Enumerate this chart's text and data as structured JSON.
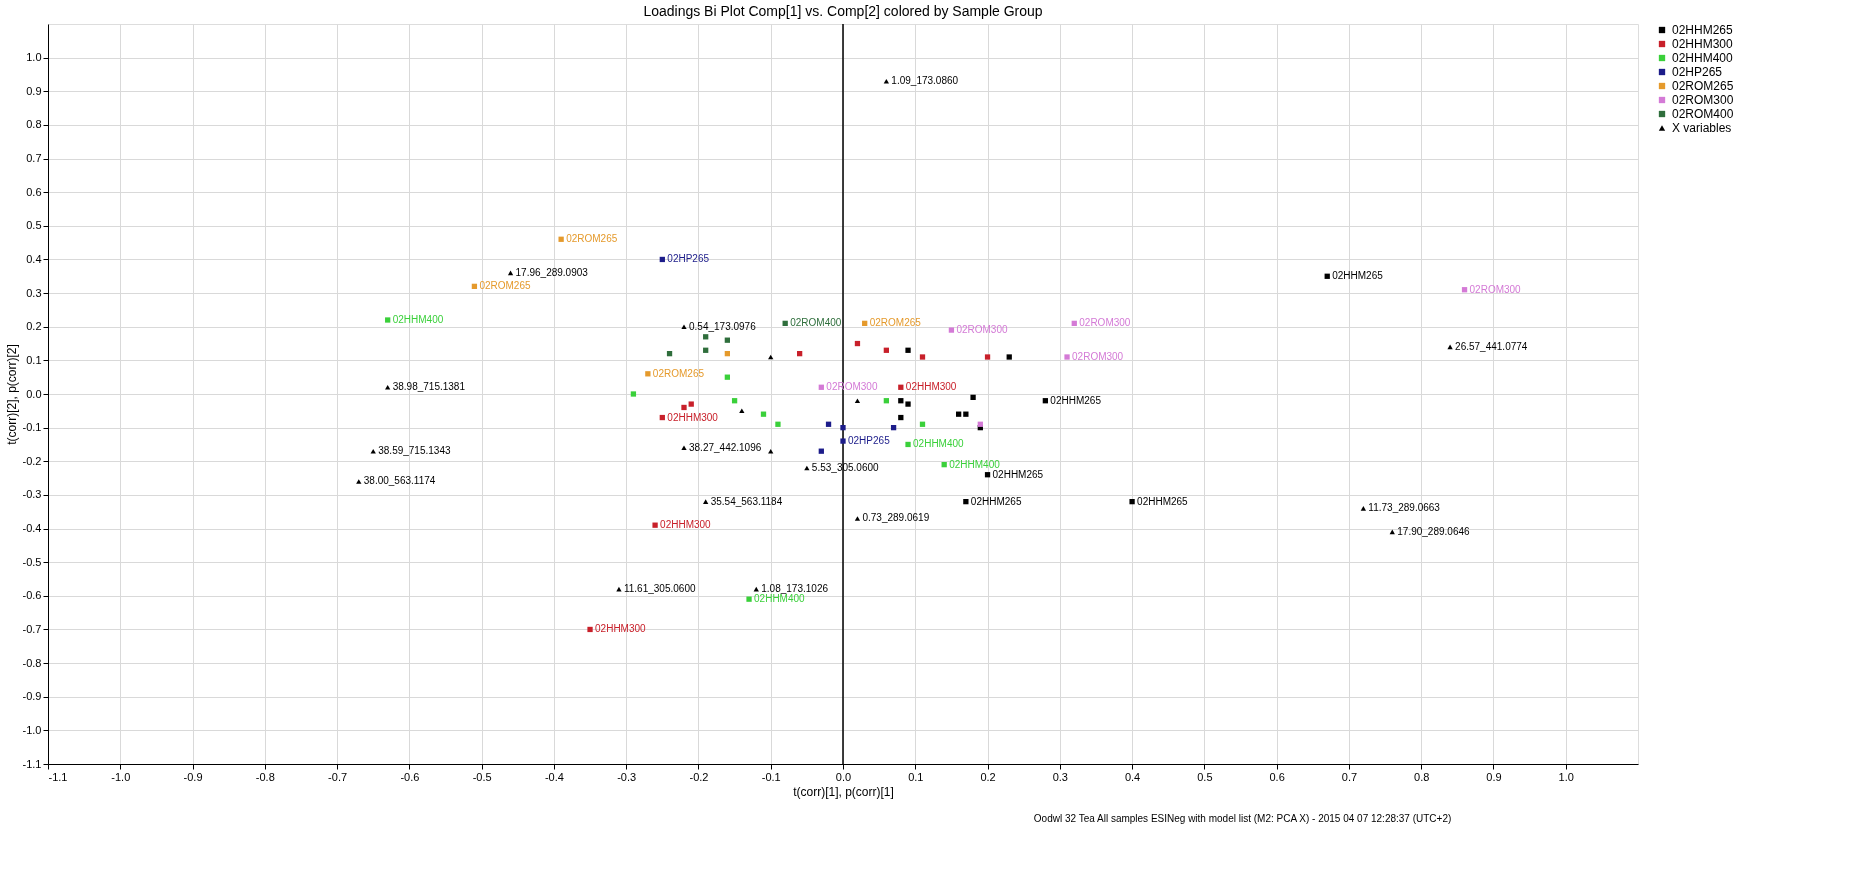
{
  "chart_data": {
    "type": "scatter",
    "title": "Loadings Bi Plot Comp[1] vs. Comp[2] colored by Sample Group",
    "xlabel": "t(corr)[1], p(corr)[1]",
    "ylabel": "t(corr)[2], p(corr)[2]",
    "xlim": [
      -1.1,
      1.1
    ],
    "ylim": [
      -1.1,
      1.1
    ],
    "xticks": [
      -1.1,
      {
        "value": -1,
        "label": "-1.0"
      },
      -0.9,
      -0.8,
      -0.7,
      -0.6,
      -0.5,
      -0.4,
      -0.3,
      -0.2,
      -0.1,
      {
        "value": 0,
        "label": "0.0"
      },
      0.1,
      0.2,
      0.3,
      0.4,
      0.5,
      0.6,
      0.7,
      0.8,
      0.9,
      {
        "value": 1,
        "label": "1.0"
      }
    ],
    "yticks": [
      -1.1,
      {
        "value": -1,
        "label": "-1.0"
      },
      -0.9,
      -0.8,
      -0.7,
      -0.6,
      -0.5,
      -0.4,
      -0.3,
      -0.2,
      -0.1,
      {
        "value": 0,
        "label": "0.0"
      },
      0.1,
      0.2,
      0.3,
      0.4,
      0.5,
      0.6,
      0.7,
      0.8,
      0.9,
      {
        "value": 1,
        "label": "1.0"
      }
    ],
    "grid": true,
    "legend": "right",
    "ref_lines": [
      {
        "axis": "x",
        "value": 0,
        "color": "#000000"
      }
    ],
    "annotations": [
      "Oodwl 32 Tea All samples ESINeg with model list (M2: PCA X) - 2015 04 07 12:28:37 (UTC+2)"
    ],
    "series": [
      {
        "name": "02HHM265",
        "color": "#000000",
        "marker": "square",
        "x": [
          0.09,
          0.23,
          0.67,
          0.08,
          0.09,
          0.18,
          0.17,
          0.28,
          0.08,
          0.16,
          0.19,
          0.2,
          0.17,
          0.18,
          0.4
        ],
        "values": [
          0.13,
          0.11,
          0.35,
          -0.02,
          -0.03,
          -0.01,
          -0.06,
          -0.02,
          -0.07,
          -0.06,
          -0.1,
          -0.24,
          -0.32,
          null,
          -0.32
        ],
        "value_labels": [
          null,
          null,
          "02HHM265",
          null,
          null,
          null,
          null,
          "02HHM265",
          null,
          null,
          null,
          "02HHM265",
          "02HHM265",
          null,
          "02HHM265"
        ]
      },
      {
        "name": "02HHM300",
        "color": "#c8202a",
        "marker": "square",
        "x": [
          -0.06,
          0.02,
          0.06,
          0.11,
          0.2,
          0.08,
          -0.21,
          -0.22,
          -0.25,
          -0.26,
          -0.35
        ],
        "values": [
          0.12,
          0.15,
          0.13,
          0.11,
          0.11,
          0.02,
          -0.03,
          -0.04,
          -0.07,
          -0.39,
          -0.7
        ],
        "value_labels": [
          null,
          null,
          null,
          null,
          null,
          "02HHM300",
          null,
          null,
          "02HHM300",
          "02HHM300",
          "02HHM300"
        ]
      },
      {
        "name": "02HHM400",
        "color": "#3ad03a",
        "marker": "square",
        "x": [
          -0.63,
          -0.16,
          -0.29,
          -0.15,
          -0.11,
          -0.09,
          0.06,
          0.11,
          0.09,
          0.14,
          -0.13
        ],
        "values": [
          0.22,
          0.05,
          0.0,
          -0.02,
          -0.06,
          -0.09,
          -0.02,
          -0.09,
          -0.15,
          -0.21,
          -0.61
        ],
        "value_labels": [
          "02HHM400",
          null,
          null,
          null,
          null,
          null,
          null,
          null,
          "02HHM400",
          "02HHM400",
          "02HHM400"
        ]
      },
      {
        "name": "02HP265",
        "color": "#1c1c8a",
        "marker": "square",
        "x": [
          -0.25,
          -0.02,
          0.0,
          0.07,
          0.0,
          -0.03
        ],
        "values": [
          0.4,
          -0.09,
          -0.1,
          -0.1,
          -0.14,
          -0.17
        ],
        "value_labels": [
          "02HP265",
          null,
          null,
          null,
          "02HP265",
          null
        ]
      },
      {
        "name": "02ROM265",
        "color": "#e59a2c",
        "marker": "square",
        "x": [
          -0.39,
          -0.51,
          0.03,
          -0.16,
          -0.27
        ],
        "values": [
          0.46,
          0.32,
          0.21,
          0.12,
          0.06
        ],
        "value_labels": [
          "02ROM265",
          "02ROM265",
          "02ROM265",
          null,
          "02ROM265"
        ]
      },
      {
        "name": "02ROM300",
        "color": "#d47ad6",
        "marker": "square",
        "x": [
          0.15,
          0.31,
          0.32,
          0.86,
          -0.03,
          0.19
        ],
        "values": [
          0.19,
          0.11,
          0.21,
          0.31,
          0.02,
          -0.09
        ],
        "value_labels": [
          "02ROM300",
          "02ROM300",
          "02ROM300",
          "02ROM300",
          "02ROM300",
          null
        ]
      },
      {
        "name": "02ROM400",
        "color": "#2f6e3c",
        "marker": "square",
        "x": [
          -0.08,
          -0.19,
          -0.16,
          -0.19,
          -0.24
        ],
        "values": [
          0.21,
          0.17,
          0.16,
          0.13,
          0.12
        ],
        "value_labels": [
          "02ROM400",
          null,
          null,
          null,
          null
        ]
      },
      {
        "name": "X variables",
        "color": "#000000",
        "marker": "triangle",
        "x": [
          0.06,
          -0.46,
          -0.22,
          -0.1,
          0.84,
          -0.63,
          -0.14,
          0.02,
          -0.65,
          -0.22,
          -0.1,
          -0.67,
          -0.05,
          -0.19,
          0.02,
          0.72,
          0.76,
          -0.31,
          -0.12
        ],
        "values": [
          0.93,
          0.36,
          0.2,
          0.11,
          0.14,
          0.02,
          -0.05,
          -0.02,
          -0.17,
          -0.16,
          -0.17,
          -0.26,
          -0.22,
          -0.32,
          -0.37,
          -0.34,
          -0.41,
          -0.58,
          -0.58
        ],
        "value_labels": [
          "1.09_173.0860",
          "17.96_289.0903",
          "0.54_173.0976",
          null,
          "26.57_441.0774",
          "38.98_715.1381",
          null,
          null,
          "38.59_715.1343",
          "38.27_442.1096",
          null,
          "38.00_563.1174",
          "5.53_305.0600",
          "35.54_563.1184",
          "0.73_289.0619",
          "11.73_289.0663",
          "17.90_289.0646",
          "11.61_305.0600",
          "1.08_173.1026"
        ]
      }
    ]
  }
}
